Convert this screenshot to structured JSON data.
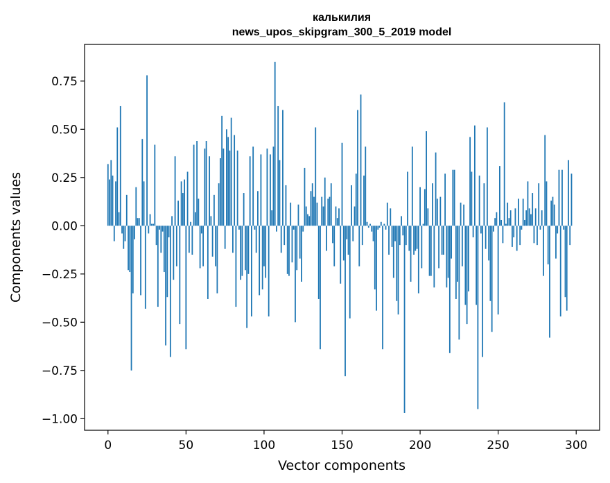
{
  "chart_data": {
    "type": "bar",
    "title_line1": "калькилия",
    "title_line2": "news_upos_skipgram_300_5_2019 model",
    "xlabel": "Vector components",
    "ylabel": "Components values",
    "xlim": [
      -15,
      315
    ],
    "ylim": [
      -1.06,
      0.94
    ],
    "xticks": [
      0,
      50,
      100,
      150,
      200,
      250,
      300
    ],
    "xtick_labels": [
      "0",
      "50",
      "100",
      "150",
      "200",
      "250",
      "300"
    ],
    "yticks": [
      -1.0,
      -0.75,
      -0.5,
      -0.25,
      0.0,
      0.25,
      0.5,
      0.75
    ],
    "ytick_labels": [
      "−1.00",
      "−0.75",
      "−0.50",
      "−0.25",
      "0.00",
      "0.25",
      "0.50",
      "0.75"
    ],
    "bar_color": "#1f77b4",
    "grid": false,
    "values": [
      0.32,
      0.24,
      0.34,
      0.26,
      -0.08,
      0.23,
      0.51,
      0.07,
      0.62,
      -0.04,
      -0.12,
      -0.08,
      0.16,
      -0.23,
      -0.24,
      -0.75,
      -0.35,
      -0.07,
      0.2,
      0.04,
      0.04,
      -0.36,
      0.45,
      0.23,
      -0.43,
      0.78,
      -0.04,
      0.06,
      0.01,
      0.01,
      0.42,
      -0.1,
      -0.42,
      -0.02,
      -0.14,
      -0.03,
      -0.24,
      -0.62,
      -0.37,
      -0.06,
      -0.68,
      0.05,
      -0.28,
      0.36,
      -0.21,
      0.13,
      -0.51,
      0.23,
      0.17,
      0.24,
      -0.64,
      0.28,
      -0.14,
      0.02,
      -0.15,
      0.42,
      0.07,
      0.44,
      0.14,
      -0.22,
      -0.04,
      -0.21,
      0.4,
      0.44,
      -0.38,
      0.36,
      0.05,
      -0.16,
      0.16,
      -0.21,
      -0.35,
      0.22,
      0.35,
      0.57,
      0.4,
      -0.12,
      0.5,
      0.46,
      0.39,
      0.56,
      -0.14,
      0.47,
      -0.42,
      0.39,
      -0.02,
      -0.28,
      -0.26,
      0.17,
      -0.23,
      -0.53,
      -0.25,
      0.36,
      -0.47,
      0.41,
      -0.02,
      -0.14,
      0.18,
      -0.36,
      0.37,
      -0.33,
      -0.21,
      -0.27,
      0.4,
      -0.47,
      0.37,
      0.08,
      0.41,
      0.85,
      -0.03,
      0.62,
      0.34,
      -0.14,
      0.6,
      -0.1,
      0.21,
      -0.25,
      -0.26,
      0.12,
      -0.19,
      -0.02,
      -0.5,
      -0.23,
      0.11,
      -0.17,
      -0.29,
      -0.03,
      0.3,
      0.1,
      0.06,
      0.05,
      0.18,
      0.22,
      0.15,
      0.51,
      0.12,
      -0.38,
      -0.64,
      0.15,
      0.1,
      0.25,
      -0.13,
      0.14,
      0.15,
      0.22,
      -0.09,
      -0.21,
      0.1,
      0.04,
      0.09,
      -0.3,
      0.43,
      -0.18,
      -0.78,
      -0.07,
      -0.15,
      -0.48,
      0.21,
      -0.08,
      0.1,
      0.27,
      0.6,
      -0.21,
      0.68,
      -0.1,
      0.26,
      0.41,
      0.02,
      -0.01,
      0.01,
      -0.03,
      -0.08,
      -0.33,
      -0.44,
      -0.02,
      -0.01,
      0.02,
      -0.64,
      0.01,
      -0.02,
      0.12,
      -0.15,
      0.09,
      -0.11,
      -0.27,
      -0.08,
      -0.39,
      -0.46,
      -0.1,
      0.05,
      -0.05,
      -0.97,
      -0.1,
      0.28,
      -0.13,
      -0.29,
      0.41,
      -0.15,
      -0.13,
      -0.12,
      -0.35,
      0.2,
      -0.22,
      0.01,
      0.19,
      0.49,
      0.09,
      -0.26,
      -0.26,
      0.22,
      -0.32,
      0.38,
      0.14,
      -0.22,
      0.15,
      -0.15,
      -0.15,
      0.27,
      -0.32,
      -0.27,
      -0.66,
      -0.17,
      0.29,
      0.29,
      -0.38,
      -0.29,
      -0.59,
      0.12,
      -0.21,
      0.11,
      -0.41,
      -0.51,
      -0.34,
      0.46,
      0.28,
      -0.06,
      0.52,
      -0.41,
      -0.95,
      0.26,
      -0.04,
      -0.68,
      0.22,
      -0.12,
      0.51,
      -0.18,
      -0.39,
      -0.55,
      -0.03,
      0.04,
      0.07,
      -0.46,
      0.31,
      0.03,
      -0.09,
      0.64,
      0.01,
      0.12,
      0.04,
      0.08,
      -0.11,
      -0.06,
      0.09,
      -0.13,
      0.14,
      -0.1,
      -0.02,
      0.14,
      0.03,
      0.08,
      0.23,
      0.09,
      0.06,
      0.17,
      -0.09,
      0.09,
      -0.1,
      0.22,
      -0.02,
      0.08,
      -0.26,
      0.47,
      0.23,
      -0.2,
      -0.58,
      0.13,
      0.15,
      0.11,
      -0.17,
      -0.04,
      0.29,
      -0.47,
      0.29,
      -0.02,
      -0.37,
      -0.44,
      0.34,
      -0.1,
      0.27
    ]
  }
}
